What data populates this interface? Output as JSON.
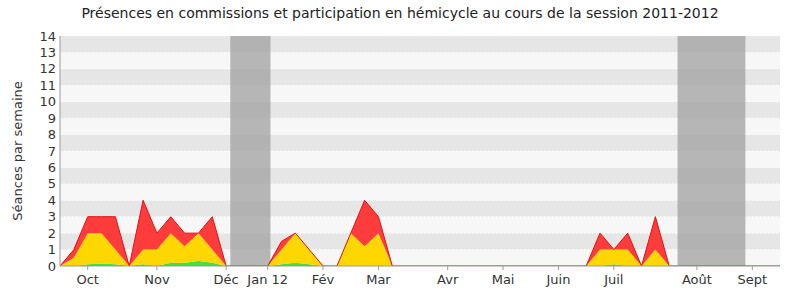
{
  "chart_data": {
    "type": "area",
    "title": "Présences en commissions et participation en hémicycle au cours de la session 2011-2012",
    "y_label": "Séances par semaine",
    "stacked": true,
    "grid": true,
    "categories": [
      null,
      null,
      "Oct",
      null,
      null,
      null,
      null,
      "Nov",
      null,
      null,
      null,
      null,
      "Déc",
      null,
      null,
      "Jan 12",
      null,
      null,
      null,
      "Fév",
      null,
      null,
      null,
      "Mar",
      null,
      null,
      null,
      null,
      "Avr",
      null,
      null,
      null,
      "Mai",
      null,
      null,
      null,
      "Juin",
      null,
      null,
      null,
      "Juil",
      null,
      null,
      null,
      null,
      null,
      "Août",
      null,
      null,
      null,
      "Sept",
      null,
      null
    ],
    "series": [
      {
        "color": "#44dd44",
        "values": [
          0,
          0,
          0.1,
          0.15,
          0.1,
          0,
          0.1,
          0,
          0.2,
          0.2,
          0.3,
          0.2,
          0,
          0,
          0,
          0,
          0.1,
          0.2,
          0.1,
          0,
          0,
          0,
          0,
          0,
          0,
          0,
          0,
          0,
          0,
          0,
          0,
          0,
          0,
          0,
          0,
          0,
          0,
          0,
          0,
          0,
          0.1,
          0,
          0,
          0,
          0,
          0,
          0,
          0,
          0,
          0,
          0,
          0,
          0
        ]
      },
      {
        "color": "#ffd700",
        "values": [
          0,
          0.5,
          1.9,
          1.85,
          0.9,
          0,
          0.9,
          1,
          1.8,
          1,
          1.7,
          0.8,
          0,
          0,
          0,
          0,
          0.9,
          1.8,
          0.9,
          0,
          0,
          2,
          1.2,
          2,
          0,
          0,
          0,
          0,
          0,
          0,
          0,
          0,
          0,
          0,
          0,
          0,
          0,
          0,
          0,
          1,
          0.9,
          1,
          0,
          1,
          0,
          0,
          0,
          0,
          0,
          0,
          0,
          0,
          0
        ]
      },
      {
        "color": "#ff3c3c",
        "values": [
          0,
          0.5,
          1,
          1,
          2,
          0,
          3,
          1,
          1,
          0.8,
          0,
          2,
          0,
          0,
          0,
          0,
          0.5,
          0,
          0,
          0,
          0,
          0,
          2.8,
          1,
          0,
          0,
          0,
          0,
          0,
          0,
          0,
          0,
          0,
          0,
          0,
          0,
          0,
          0,
          0,
          1,
          0,
          1,
          0,
          2,
          0,
          0,
          0,
          0,
          0,
          0,
          0,
          0,
          0
        ]
      }
    ],
    "shaded_ranges": [
      {
        "from": 12.3,
        "to": 15.2
      },
      {
        "from": 44.6,
        "to": 49.5
      }
    ],
    "ylim": [
      0,
      14
    ],
    "yticks": [
      0,
      1,
      2,
      3,
      4,
      5,
      6,
      7,
      8,
      9,
      10,
      11,
      12,
      13,
      14
    ]
  }
}
